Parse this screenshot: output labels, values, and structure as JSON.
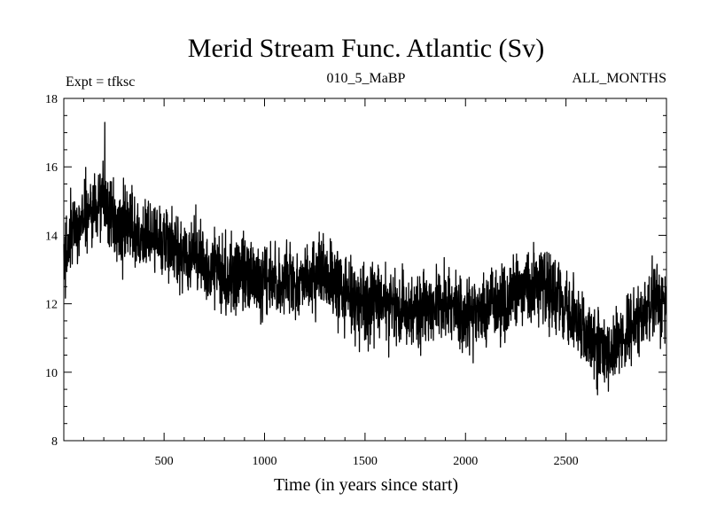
{
  "chart_data": {
    "type": "line",
    "title": "Merid Stream Func. Atlantic (Sv)",
    "subtitle_left": "Expt = tfksc",
    "subtitle_center": "010_5_MaBP",
    "subtitle_right": "ALL_MONTHS",
    "xlabel": "Time (in years since start)",
    "ylabel": "",
    "xlim": [
      1,
      3000
    ],
    "ylim": [
      8,
      18
    ],
    "x_ticks": [
      500,
      1000,
      1500,
      2000,
      2500
    ],
    "x_tick_labels": [
      "500",
      "1000",
      "1500",
      "2000",
      "2500"
    ],
    "y_ticks": [
      8,
      10,
      12,
      14,
      16,
      18
    ],
    "y_tick_labels": [
      "8",
      "10",
      "12",
      "14",
      "16",
      "18"
    ],
    "grid": false,
    "series": [
      {
        "name": "Merid Stream Func. Atlantic",
        "color": "#000000",
        "x": [
          1,
          50,
          100,
          150,
          200,
          250,
          300,
          350,
          400,
          450,
          500,
          550,
          600,
          650,
          700,
          750,
          800,
          850,
          900,
          950,
          1000,
          1050,
          1100,
          1150,
          1200,
          1250,
          1300,
          1350,
          1400,
          1450,
          1500,
          1550,
          1600,
          1650,
          1700,
          1750,
          1800,
          1850,
          1900,
          1950,
          2000,
          2050,
          2100,
          2150,
          2200,
          2250,
          2300,
          2350,
          2400,
          2450,
          2500,
          2550,
          2600,
          2650,
          2700,
          2750,
          2800,
          2850,
          2900,
          2950,
          3000
        ],
        "mean": [
          13.2,
          14.2,
          14.6,
          14.8,
          15.0,
          14.4,
          14.1,
          14.2,
          13.9,
          14.0,
          13.9,
          13.6,
          13.5,
          13.4,
          13.2,
          13.1,
          12.9,
          12.8,
          12.8,
          12.7,
          12.7,
          12.7,
          12.6,
          12.5,
          12.7,
          12.8,
          12.8,
          12.6,
          12.4,
          12.1,
          12.0,
          12.0,
          12.1,
          11.9,
          11.8,
          11.7,
          11.8,
          11.9,
          12.0,
          11.9,
          11.6,
          11.7,
          11.9,
          12.0,
          12.1,
          12.3,
          12.4,
          12.5,
          12.6,
          12.2,
          11.9,
          11.6,
          11.1,
          10.7,
          10.6,
          10.8,
          11.1,
          11.4,
          11.8,
          12.1,
          12.0
        ],
        "noise_amplitude": 0.55,
        "max_value": 17.3,
        "max_year": 205,
        "min_value": 9.8,
        "min_year": 2640
      }
    ]
  }
}
